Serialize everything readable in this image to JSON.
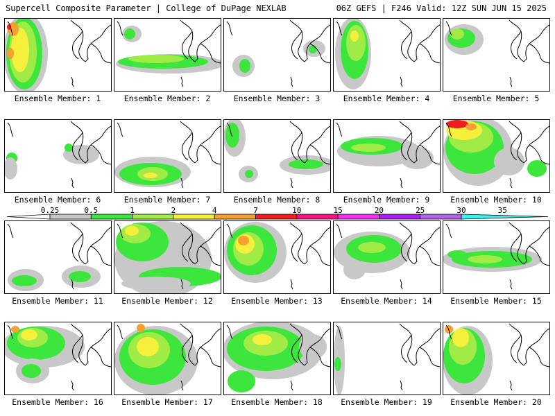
{
  "header": {
    "title_left": "Supercell Composite Parameter | College of DuPage NEXLAB",
    "title_right": "06Z GEFS | F246 Valid: 12Z SUN JUN 15 2025"
  },
  "colorbar": {
    "labels": [
      "0.25",
      "0.5",
      "1",
      "2",
      "4",
      "7",
      "10",
      "15",
      "20",
      "25",
      "30",
      "35"
    ],
    "colors": [
      "#c8c8c8",
      "#3ce63c",
      "#a0eb46",
      "#f5f03c",
      "#f5a032",
      "#f01e1e",
      "#f51482",
      "#f032f0",
      "#aa1ef0",
      "#b464e6",
      "#3cf0f0"
    ]
  },
  "chart_data": {
    "type": "heatmap",
    "title": "Supercell Composite Parameter",
    "run": "06Z GEFS",
    "forecast_hour": "F246",
    "valid": "12Z SUN JUN 15 2025",
    "levels": [
      0.25,
      0.5,
      1,
      2,
      4,
      7,
      10,
      15,
      20,
      25,
      30,
      35
    ],
    "panels": [
      {
        "member": 1,
        "label": "Ensemble Member: 1",
        "max_level": 7
      },
      {
        "member": 2,
        "label": "Ensemble Member: 2",
        "max_level": 2
      },
      {
        "member": 3,
        "label": "Ensemble Member: 3",
        "max_level": 1
      },
      {
        "member": 4,
        "label": "Ensemble Member: 4",
        "max_level": 2
      },
      {
        "member": 5,
        "label": "Ensemble Member: 5",
        "max_level": 2
      },
      {
        "member": 6,
        "label": "Ensemble Member: 6",
        "max_level": 0.5
      },
      {
        "member": 7,
        "label": "Ensemble Member: 7",
        "max_level": 2
      },
      {
        "member": 8,
        "label": "Ensemble Member: 8",
        "max_level": 1
      },
      {
        "member": 9,
        "label": "Ensemble Member: 9",
        "max_level": 1
      },
      {
        "member": 10,
        "label": "Ensemble Member: 10",
        "max_level": 10
      },
      {
        "member": 11,
        "label": "Ensemble Member: 11",
        "max_level": 1
      },
      {
        "member": 12,
        "label": "Ensemble Member: 12",
        "max_level": 4
      },
      {
        "member": 13,
        "label": "Ensemble Member: 13",
        "max_level": 7
      },
      {
        "member": 14,
        "label": "Ensemble Member: 14",
        "max_level": 1
      },
      {
        "member": 15,
        "label": "Ensemble Member: 15",
        "max_level": 1
      },
      {
        "member": 16,
        "label": "Ensemble Member: 16",
        "max_level": 4
      },
      {
        "member": 17,
        "label": "Ensemble Member: 17",
        "max_level": 7
      },
      {
        "member": 18,
        "label": "Ensemble Member: 18",
        "max_level": 4
      },
      {
        "member": 19,
        "label": "Ensemble Member: 19",
        "max_level": 0.5
      },
      {
        "member": 20,
        "label": "Ensemble Member: 20",
        "max_level": 7
      }
    ]
  }
}
